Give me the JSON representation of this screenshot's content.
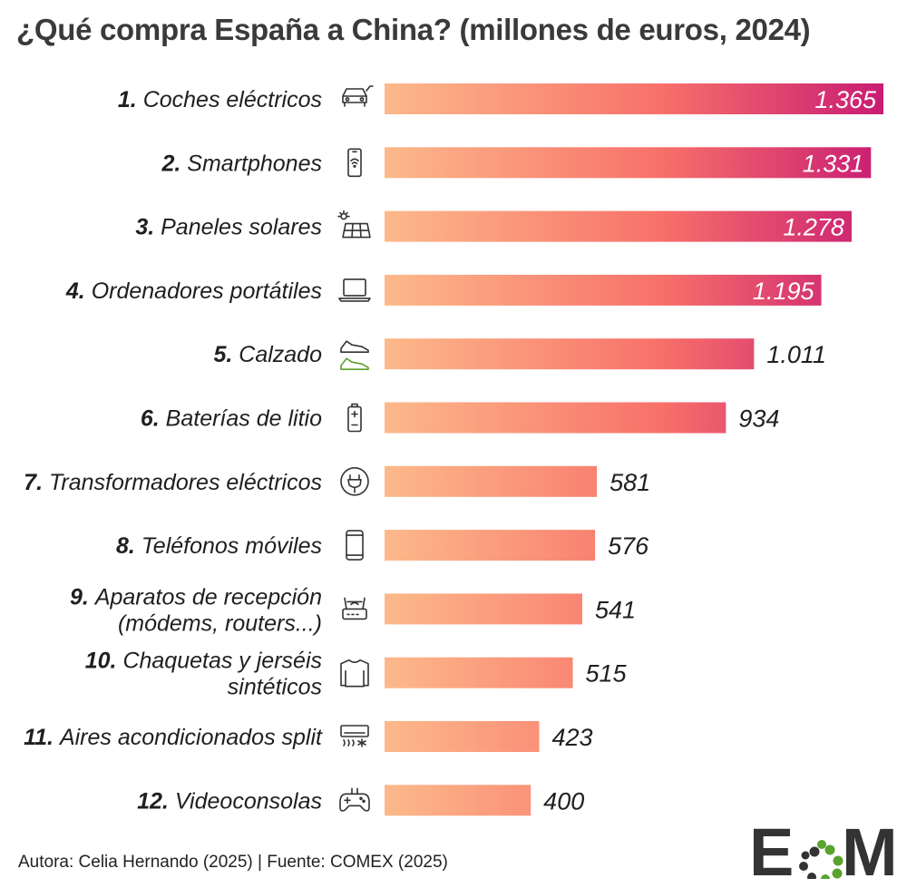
{
  "chart_data": {
    "type": "bar",
    "orientation": "horizontal",
    "title": "¿Qué compra España a China? (millones de euros, 2024)",
    "categories": [
      {
        "rank": "1.",
        "label": "Coches eléctricos",
        "icon": "electric-car-icon"
      },
      {
        "rank": "2.",
        "label": "Smartphones",
        "icon": "smartphone-icon"
      },
      {
        "rank": "3.",
        "label": "Paneles solares",
        "icon": "solar-panel-icon"
      },
      {
        "rank": "4.",
        "label": "Ordenadores portátiles",
        "icon": "laptop-icon"
      },
      {
        "rank": "5.",
        "label": "Calzado",
        "icon": "sneakers-icon"
      },
      {
        "rank": "6.",
        "label": "Baterías de litio",
        "icon": "battery-icon"
      },
      {
        "rank": "7.",
        "label": "Transformadores eléctricos",
        "icon": "plug-icon"
      },
      {
        "rank": "8.",
        "label": "Teléfonos móviles",
        "icon": "mobile-phone-icon"
      },
      {
        "rank": "9.",
        "label": "Aparatos de recepción",
        "label2": "(módems, routers...)",
        "icon": "router-icon"
      },
      {
        "rank": "10.",
        "label": "Chaquetas y jerséis",
        "label2": "sintéticos",
        "icon": "sweater-icon"
      },
      {
        "rank": "11.",
        "label": "Aires acondicionados split",
        "icon": "air-conditioner-icon"
      },
      {
        "rank": "12.",
        "label": "Videoconsolas",
        "icon": "gamepad-icon"
      }
    ],
    "values": [
      1365,
      1331,
      1278,
      1195,
      1011,
      934,
      581,
      576,
      541,
      515,
      423,
      400
    ],
    "value_labels": [
      "1.365",
      "1.331",
      "1.278",
      "1.195",
      "1.011",
      "934",
      "581",
      "576",
      "541",
      "515",
      "423",
      "400"
    ],
    "xlim": [
      0,
      1365
    ],
    "legend": "none",
    "grid": false,
    "colors": {
      "bar_start": "#fcb98a",
      "bar_mid": "#f8716a",
      "bar_end": "#c81c74",
      "inside_label": "#ffffff",
      "outside_label": "#1f1f1f"
    }
  },
  "footer": {
    "credit": "Autora: Celia Hernando (2025) | Fuente: COMEX (2025)"
  },
  "logo": {
    "text_left": "E",
    "text_right": "M"
  }
}
